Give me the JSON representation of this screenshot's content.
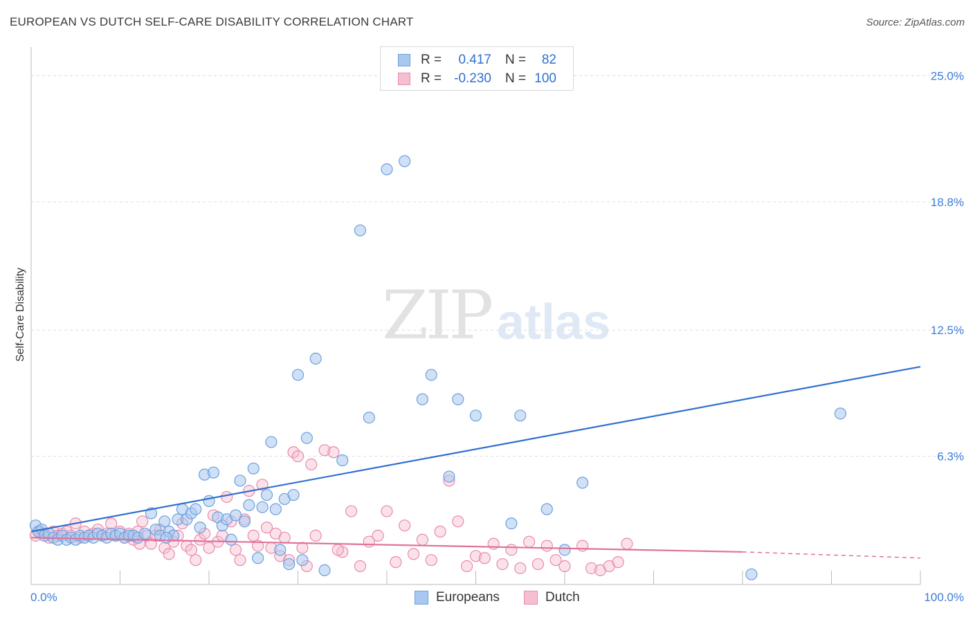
{
  "title": "EUROPEAN VS DUTCH SELF-CARE DISABILITY CORRELATION CHART",
  "source": "Source: ZipAtlas.com",
  "watermark": {
    "zip": "ZIP",
    "atlas": "atlas"
  },
  "legend": {
    "rows": [
      {
        "r_label": "R =",
        "r_value": "0.417",
        "n_label": "N =",
        "n_value": "82",
        "color": "#a9c8ef",
        "border": "#6c9fde"
      },
      {
        "r_label": "R =",
        "r_value": "-0.230",
        "n_label": "N =",
        "n_value": "100",
        "color": "#f6bfd0",
        "border": "#e88aa8"
      }
    ]
  },
  "bottom_legend": [
    {
      "label": "Europeans",
      "color": "#a9c8ef",
      "border": "#6c9fde"
    },
    {
      "label": "Dutch",
      "color": "#f6bfd0",
      "border": "#e88aa8"
    }
  ],
  "chart_data": {
    "type": "scatter",
    "title": "EUROPEAN VS DUTCH SELF-CARE DISABILITY CORRELATION CHART",
    "xlabel": "",
    "ylabel": "Self-Care Disability",
    "xlim": [
      0,
      100
    ],
    "ylim": [
      0,
      26.0
    ],
    "x_tick_labels": [
      "0.0%",
      "100.0%"
    ],
    "y_ticks": [
      6.3,
      12.5,
      18.8,
      25.0
    ],
    "y_tick_labels": [
      "6.3%",
      "12.5%",
      "18.8%",
      "25.0%"
    ],
    "grid": true,
    "series": [
      {
        "name": "Europeans",
        "color": "#6c9fde",
        "fill": "#a9c8ef",
        "trend": {
          "x": [
            0,
            100
          ],
          "y": [
            2.6,
            10.7
          ],
          "color": "#2f6fd0"
        },
        "points": [
          [
            0.5,
            2.9
          ],
          [
            0.8,
            2.6
          ],
          [
            1.2,
            2.7
          ],
          [
            1.5,
            2.4
          ],
          [
            2,
            2.5
          ],
          [
            2.5,
            2.3
          ],
          [
            3,
            2.2
          ],
          [
            3.5,
            2.4
          ],
          [
            4,
            2.2
          ],
          [
            4.5,
            2.3
          ],
          [
            5,
            2.2
          ],
          [
            5.5,
            2.4
          ],
          [
            6,
            2.3
          ],
          [
            6.5,
            2.4
          ],
          [
            7,
            2.3
          ],
          [
            7.5,
            2.5
          ],
          [
            8,
            2.4
          ],
          [
            8.5,
            2.3
          ],
          [
            9,
            2.5
          ],
          [
            9.5,
            2.4
          ],
          [
            10,
            2.5
          ],
          [
            10.5,
            2.3
          ],
          [
            11,
            2.4
          ],
          [
            11.5,
            2.4
          ],
          [
            12,
            2.3
          ],
          [
            12.8,
            2.5
          ],
          [
            13.5,
            3.5
          ],
          [
            14,
            2.7
          ],
          [
            14.5,
            2.4
          ],
          [
            15,
            3.1
          ],
          [
            15.5,
            2.6
          ],
          [
            16,
            2.4
          ],
          [
            16.5,
            3.2
          ],
          [
            17,
            3.7
          ],
          [
            17.5,
            3.2
          ],
          [
            18,
            3.5
          ],
          [
            18.5,
            3.7
          ],
          [
            19,
            2.8
          ],
          [
            19.5,
            5.4
          ],
          [
            20,
            4.1
          ],
          [
            20.5,
            5.5
          ],
          [
            21,
            3.3
          ],
          [
            21.5,
            2.9
          ],
          [
            22,
            3.2
          ],
          [
            22.5,
            2.2
          ],
          [
            23,
            3.4
          ],
          [
            23.5,
            5.1
          ],
          [
            24,
            3.1
          ],
          [
            24.5,
            3.9
          ],
          [
            25,
            5.7
          ],
          [
            25.5,
            1.3
          ],
          [
            26,
            3.8
          ],
          [
            26.5,
            4.4
          ],
          [
            27,
            7.0
          ],
          [
            27.5,
            3.7
          ],
          [
            28,
            1.7
          ],
          [
            28.5,
            4.2
          ],
          [
            29,
            1.0
          ],
          [
            29.5,
            4.4
          ],
          [
            30,
            10.3
          ],
          [
            30.5,
            1.2
          ],
          [
            31,
            7.2
          ],
          [
            32,
            11.1
          ],
          [
            33,
            0.7
          ],
          [
            35,
            6.1
          ],
          [
            37,
            17.4
          ],
          [
            38,
            8.2
          ],
          [
            40,
            20.4
          ],
          [
            42,
            20.8
          ],
          [
            44,
            9.1
          ],
          [
            45,
            10.3
          ],
          [
            47,
            5.3
          ],
          [
            48,
            9.1
          ],
          [
            50,
            8.3
          ],
          [
            54,
            3.0
          ],
          [
            55,
            8.3
          ],
          [
            58,
            3.7
          ],
          [
            60,
            1.7
          ],
          [
            62,
            5.0
          ],
          [
            81,
            0.5
          ],
          [
            91,
            8.4
          ],
          [
            15.2,
            2.3
          ]
        ]
      },
      {
        "name": "Dutch",
        "color": "#e88aa8",
        "fill": "#f6bfd0",
        "trend": {
          "x": [
            0,
            80
          ],
          "y": [
            2.3,
            1.6
          ],
          "color": "#e0709a"
        },
        "trend_dashed": {
          "x": [
            80,
            100
          ],
          "y": [
            1.6,
            1.3
          ]
        },
        "points": [
          [
            0.5,
            2.4
          ],
          [
            1,
            2.6
          ],
          [
            1.5,
            2.5
          ],
          [
            2,
            2.3
          ],
          [
            2.5,
            2.6
          ],
          [
            3,
            2.4
          ],
          [
            3.5,
            2.5
          ],
          [
            4,
            2.6
          ],
          [
            4.5,
            2.4
          ],
          [
            5,
            3.0
          ],
          [
            5.5,
            2.3
          ],
          [
            6,
            2.6
          ],
          [
            6.5,
            2.4
          ],
          [
            7,
            2.5
          ],
          [
            7.5,
            2.7
          ],
          [
            8,
            2.4
          ],
          [
            8.5,
            2.5
          ],
          [
            9,
            3.0
          ],
          [
            9.5,
            2.4
          ],
          [
            10,
            2.6
          ],
          [
            10.5,
            2.3
          ],
          [
            11,
            2.5
          ],
          [
            11.5,
            2.2
          ],
          [
            12,
            2.6
          ],
          [
            12.5,
            3.1
          ],
          [
            13,
            2.4
          ],
          [
            13.5,
            2.0
          ],
          [
            14,
            2.4
          ],
          [
            14.5,
            2.7
          ],
          [
            15,
            1.8
          ],
          [
            15.5,
            1.5
          ],
          [
            16,
            2.1
          ],
          [
            16.5,
            2.4
          ],
          [
            17,
            3.0
          ],
          [
            17.5,
            1.9
          ],
          [
            18,
            1.7
          ],
          [
            18.5,
            1.2
          ],
          [
            19,
            2.2
          ],
          [
            19.5,
            2.5
          ],
          [
            20,
            1.8
          ],
          [
            20.5,
            3.4
          ],
          [
            21,
            2.1
          ],
          [
            21.5,
            2.4
          ],
          [
            22,
            4.3
          ],
          [
            22.5,
            3.1
          ],
          [
            23,
            1.7
          ],
          [
            23.5,
            1.2
          ],
          [
            24,
            3.2
          ],
          [
            24.5,
            4.6
          ],
          [
            25,
            2.4
          ],
          [
            25.5,
            1.9
          ],
          [
            26,
            4.9
          ],
          [
            26.5,
            2.8
          ],
          [
            27,
            1.8
          ],
          [
            27.5,
            2.5
          ],
          [
            28,
            1.4
          ],
          [
            28.5,
            2.3
          ],
          [
            29,
            1.2
          ],
          [
            29.5,
            6.5
          ],
          [
            30,
            6.3
          ],
          [
            30.5,
            1.8
          ],
          [
            31,
            0.9
          ],
          [
            31.5,
            5.9
          ],
          [
            32,
            2.4
          ],
          [
            33,
            6.6
          ],
          [
            34,
            6.5
          ],
          [
            35,
            1.6
          ],
          [
            36,
            3.6
          ],
          [
            37,
            0.9
          ],
          [
            38,
            2.1
          ],
          [
            39,
            2.4
          ],
          [
            40,
            3.6
          ],
          [
            41,
            1.1
          ],
          [
            42,
            2.9
          ],
          [
            43,
            1.5
          ],
          [
            44,
            2.2
          ],
          [
            45,
            1.2
          ],
          [
            46,
            2.6
          ],
          [
            47,
            5.1
          ],
          [
            48,
            3.1
          ],
          [
            49,
            0.9
          ],
          [
            50,
            1.4
          ],
          [
            51,
            1.3
          ],
          [
            52,
            2.0
          ],
          [
            53,
            1.0
          ],
          [
            54,
            1.7
          ],
          [
            55,
            0.8
          ],
          [
            56,
            2.1
          ],
          [
            57,
            1.0
          ],
          [
            58,
            1.9
          ],
          [
            59,
            1.2
          ],
          [
            60,
            0.9
          ],
          [
            62,
            1.9
          ],
          [
            63,
            0.8
          ],
          [
            64,
            0.7
          ],
          [
            65,
            0.9
          ],
          [
            66,
            1.1
          ],
          [
            67,
            2.0
          ],
          [
            34.5,
            1.7
          ],
          [
            12.2,
            2.0
          ]
        ]
      }
    ]
  }
}
